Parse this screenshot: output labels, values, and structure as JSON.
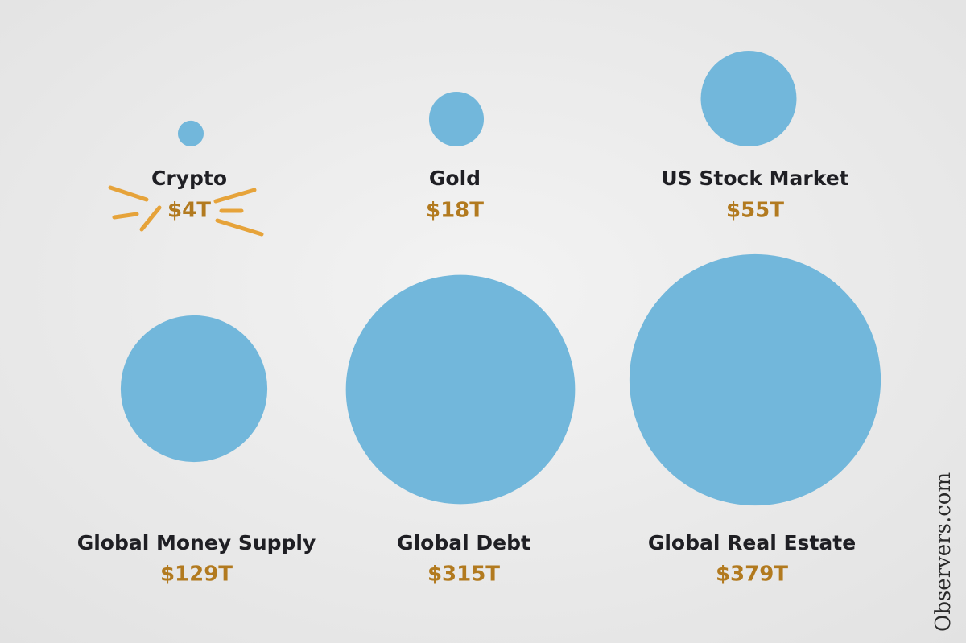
{
  "chart_data": {
    "type": "bubble",
    "categories": [
      "Crypto",
      "Gold",
      "US Stock Market",
      "Global Money Supply",
      "Global Debt",
      "Global Real Estate"
    ],
    "values": [
      4,
      18,
      55,
      129,
      315,
      379
    ],
    "value_labels": [
      "$4T",
      "$18T",
      "$55T",
      "$129T",
      "$315T",
      "$379T"
    ],
    "color": "#72b7db",
    "watermark": "Observers.com"
  }
}
